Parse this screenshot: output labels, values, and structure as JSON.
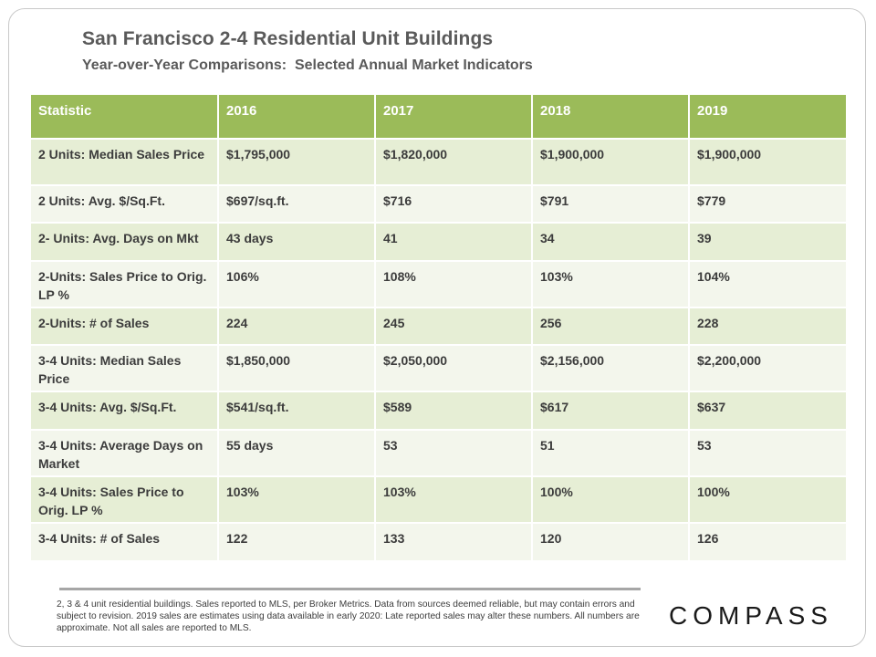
{
  "header": {
    "title": "San Francisco 2-4 Residential Unit Buildings",
    "subtitle": "Year-over-Year Comparisons:  Selected Annual Market Indicators"
  },
  "table": {
    "columns": [
      "Statistic",
      "2016",
      "2017",
      "2018",
      "2019"
    ],
    "rows": [
      {
        "label": "2 Units: Median Sales Price",
        "values": [
          "$1,795,000",
          "$1,820,000",
          "$1,900,000",
          "$1,900,000"
        ]
      },
      {
        "label": "2 Units: Avg. $/Sq.Ft.",
        "values": [
          "$697/sq.ft.",
          "$716",
          "$791",
          "$779"
        ]
      },
      {
        "label": "2- Units: Avg. Days on Mkt",
        "values": [
          "43 days",
          "41",
          "34",
          "39"
        ]
      },
      {
        "label": "2-Units: Sales Price to Orig. LP %",
        "values": [
          "106%",
          "108%",
          "103%",
          "104%"
        ]
      },
      {
        "label": "2-Units: # of Sales",
        "values": [
          "224",
          "245",
          "256",
          "228"
        ]
      },
      {
        "label": "3-4 Units: Median Sales Price",
        "values": [
          "$1,850,000",
          "$2,050,000",
          "$2,156,000",
          "$2,200,000"
        ]
      },
      {
        "label": "3-4 Units: Avg. $/Sq.Ft.",
        "values": [
          "$541/sq.ft.",
          "$589",
          "$617",
          "$637"
        ]
      },
      {
        "label": "3-4 Units: Average Days on Market",
        "values": [
          "55 days",
          "53",
          "51",
          "53"
        ]
      },
      {
        "label": "3-4 Units: Sales Price to Orig. LP %",
        "values": [
          "103%",
          "103%",
          "100%",
          "100%"
        ]
      },
      {
        "label": "3-4 Units: # of Sales",
        "values": [
          "122",
          "133",
          "120",
          "126"
        ]
      }
    ]
  },
  "footnote": "2, 3 & 4 unit residential buildings. Sales reported to MLS, per Broker Metrics. Data from sources deemed reliable, but may contain errors and subject to revision. 2019 sales are estimates using data available in early 2020: Late reported sales may alter these numbers. All numbers are approximate. Not all sales are reported to MLS.",
  "brand": {
    "logo_text": "COMPASS"
  },
  "colors": {
    "header_green": "#9bbb59",
    "row_odd": "#e6eed5",
    "row_even": "#f3f6ec",
    "title_gray": "#5a5a5a"
  }
}
